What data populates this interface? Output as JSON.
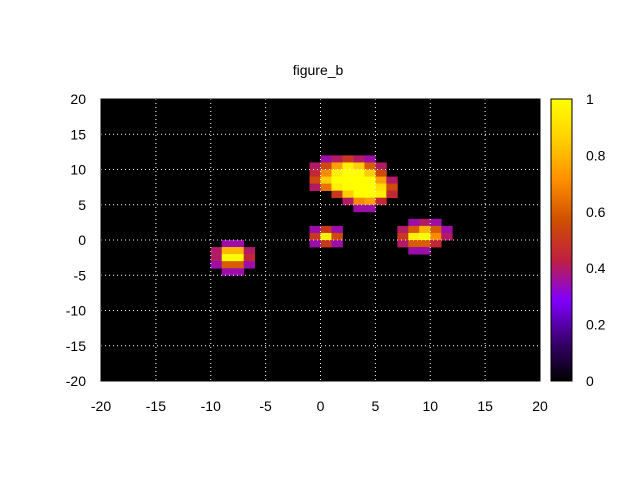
{
  "chart_data": {
    "type": "heatmap",
    "title": "figure_b",
    "xlabel": "",
    "ylabel": "",
    "xlim": [
      -20,
      20
    ],
    "ylim": [
      -20,
      20
    ],
    "x_ticks": [
      "-20",
      "-15",
      "-10",
      "-5",
      "0",
      "5",
      "10",
      "15",
      "20"
    ],
    "y_ticks": [
      "20",
      "15",
      "10",
      "5",
      "0",
      "-5",
      "-10",
      "-15",
      "-20"
    ],
    "grid": true,
    "background": "#000000",
    "grid_color": "#ffffff",
    "cell_size": 1,
    "colorbar": {
      "min": 0,
      "max": 1,
      "ticks": [
        "1",
        "0.8",
        "0.6",
        "0.4",
        "0.2",
        "0"
      ],
      "colormap": "black-purple-red-orange-yellow",
      "stops": [
        "#000000",
        "#3a0070",
        "#8000ff",
        "#c02040",
        "#d05000",
        "#ff9000",
        "#ffd000",
        "#ffff00"
      ]
    },
    "points": [
      {
        "x": 0,
        "y": 11,
        "v": 0.35
      },
      {
        "x": 1,
        "y": 11,
        "v": 0.4
      },
      {
        "x": 2,
        "y": 11,
        "v": 0.5
      },
      {
        "x": 3,
        "y": 11,
        "v": 0.4
      },
      {
        "x": 4,
        "y": 11,
        "v": 0.35
      },
      {
        "x": -1,
        "y": 10,
        "v": 0.4
      },
      {
        "x": 0,
        "y": 10,
        "v": 0.55
      },
      {
        "x": 1,
        "y": 10,
        "v": 0.75
      },
      {
        "x": 2,
        "y": 10,
        "v": 0.95
      },
      {
        "x": 3,
        "y": 10,
        "v": 0.85
      },
      {
        "x": 4,
        "y": 10,
        "v": 0.6
      },
      {
        "x": 5,
        "y": 10,
        "v": 0.4
      },
      {
        "x": -1,
        "y": 9,
        "v": 0.45
      },
      {
        "x": 0,
        "y": 9,
        "v": 0.7
      },
      {
        "x": 1,
        "y": 9,
        "v": 0.95
      },
      {
        "x": 2,
        "y": 9,
        "v": 1.0
      },
      {
        "x": 3,
        "y": 9,
        "v": 1.0
      },
      {
        "x": 4,
        "y": 9,
        "v": 0.85
      },
      {
        "x": 5,
        "y": 9,
        "v": 0.55
      },
      {
        "x": -1,
        "y": 8,
        "v": 0.55
      },
      {
        "x": 0,
        "y": 8,
        "v": 0.85
      },
      {
        "x": 1,
        "y": 8,
        "v": 1.0
      },
      {
        "x": 2,
        "y": 8,
        "v": 1.0
      },
      {
        "x": 3,
        "y": 8,
        "v": 1.0
      },
      {
        "x": 4,
        "y": 8,
        "v": 1.0
      },
      {
        "x": 5,
        "y": 8,
        "v": 0.75
      },
      {
        "x": 6,
        "y": 8,
        "v": 0.4
      },
      {
        "x": -1,
        "y": 7,
        "v": 0.4
      },
      {
        "x": 0,
        "y": 7,
        "v": 0.65
      },
      {
        "x": 1,
        "y": 7,
        "v": 0.95
      },
      {
        "x": 2,
        "y": 7,
        "v": 1.0
      },
      {
        "x": 3,
        "y": 7,
        "v": 1.0
      },
      {
        "x": 4,
        "y": 7,
        "v": 1.0
      },
      {
        "x": 5,
        "y": 7,
        "v": 0.9
      },
      {
        "x": 6,
        "y": 7,
        "v": 0.55
      },
      {
        "x": 1,
        "y": 6,
        "v": 0.5
      },
      {
        "x": 2,
        "y": 6,
        "v": 0.85
      },
      {
        "x": 3,
        "y": 6,
        "v": 1.0
      },
      {
        "x": 4,
        "y": 6,
        "v": 1.0
      },
      {
        "x": 5,
        "y": 6,
        "v": 0.95
      },
      {
        "x": 6,
        "y": 6,
        "v": 0.45
      },
      {
        "x": 2,
        "y": 5,
        "v": 0.4
      },
      {
        "x": 3,
        "y": 5,
        "v": 0.7
      },
      {
        "x": 4,
        "y": 5,
        "v": 0.75
      },
      {
        "x": 5,
        "y": 5,
        "v": 0.45
      },
      {
        "x": 3,
        "y": 4,
        "v": 0.35
      },
      {
        "x": 4,
        "y": 4,
        "v": 0.35
      },
      {
        "x": -1,
        "y": 1,
        "v": 0.35
      },
      {
        "x": 0,
        "y": 1,
        "v": 0.5
      },
      {
        "x": 1,
        "y": 1,
        "v": 0.35
      },
      {
        "x": -1,
        "y": 0,
        "v": 0.5
      },
      {
        "x": 0,
        "y": 0,
        "v": 0.95
      },
      {
        "x": 1,
        "y": 0,
        "v": 0.55
      },
      {
        "x": -1,
        "y": -1,
        "v": 0.35
      },
      {
        "x": 0,
        "y": -1,
        "v": 0.5
      },
      {
        "x": 1,
        "y": -1,
        "v": 0.35
      },
      {
        "x": 8,
        "y": 2,
        "v": 0.35
      },
      {
        "x": 9,
        "y": 2,
        "v": 0.4
      },
      {
        "x": 10,
        "y": 2,
        "v": 0.35
      },
      {
        "x": 7,
        "y": 1,
        "v": 0.4
      },
      {
        "x": 8,
        "y": 1,
        "v": 0.6
      },
      {
        "x": 9,
        "y": 1,
        "v": 0.8
      },
      {
        "x": 10,
        "y": 1,
        "v": 0.6
      },
      {
        "x": 11,
        "y": 1,
        "v": 0.35
      },
      {
        "x": 7,
        "y": 0,
        "v": 0.5
      },
      {
        "x": 8,
        "y": 0,
        "v": 0.95
      },
      {
        "x": 9,
        "y": 0,
        "v": 1.0
      },
      {
        "x": 10,
        "y": 0,
        "v": 0.7
      },
      {
        "x": 11,
        "y": 0,
        "v": 0.4
      },
      {
        "x": 7,
        "y": -1,
        "v": 0.4
      },
      {
        "x": 8,
        "y": -1,
        "v": 0.6
      },
      {
        "x": 9,
        "y": -1,
        "v": 0.6
      },
      {
        "x": 10,
        "y": -1,
        "v": 0.45
      },
      {
        "x": 8,
        "y": -2,
        "v": 0.35
      },
      {
        "x": 9,
        "y": -2,
        "v": 0.35
      },
      {
        "x": -9,
        "y": -1,
        "v": 0.35
      },
      {
        "x": -8,
        "y": -1,
        "v": 0.35
      },
      {
        "x": -10,
        "y": -2,
        "v": 0.4
      },
      {
        "x": -9,
        "y": -2,
        "v": 0.8
      },
      {
        "x": -8,
        "y": -2,
        "v": 0.8
      },
      {
        "x": -7,
        "y": -2,
        "v": 0.4
      },
      {
        "x": -10,
        "y": -3,
        "v": 0.4
      },
      {
        "x": -9,
        "y": -3,
        "v": 1.0
      },
      {
        "x": -8,
        "y": -3,
        "v": 1.0
      },
      {
        "x": -7,
        "y": -3,
        "v": 0.45
      },
      {
        "x": -10,
        "y": -4,
        "v": 0.35
      },
      {
        "x": -9,
        "y": -4,
        "v": 0.6
      },
      {
        "x": -8,
        "y": -4,
        "v": 0.6
      },
      {
        "x": -7,
        "y": -4,
        "v": 0.35
      },
      {
        "x": -9,
        "y": -5,
        "v": 0.35
      },
      {
        "x": -8,
        "y": -5,
        "v": 0.35
      }
    ]
  }
}
